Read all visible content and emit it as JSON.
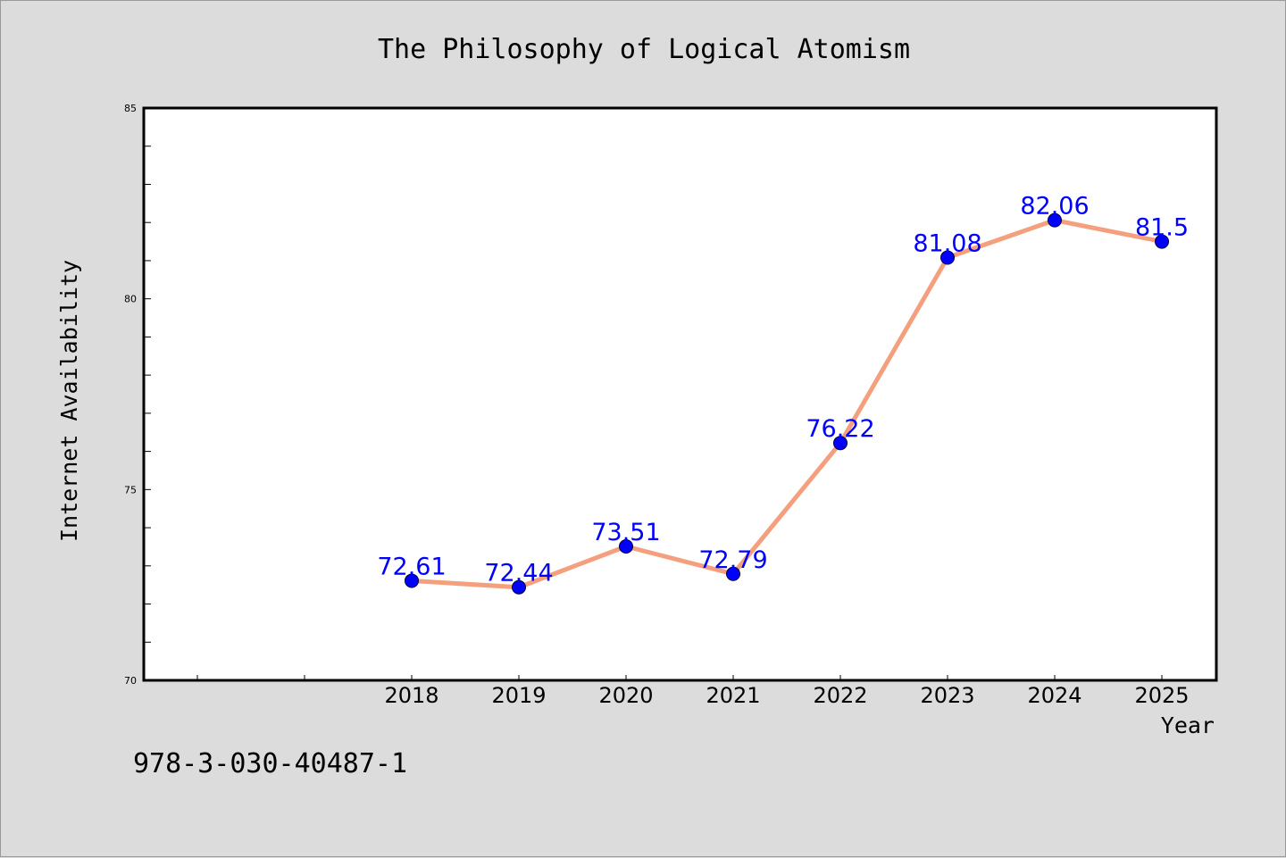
{
  "chart_data": {
    "type": "line",
    "title": "The Philosophy of Logical Atomism",
    "xlabel": "Year",
    "ylabel": "Internet Availability",
    "categories": [
      "2018",
      "2019",
      "2020",
      "2021",
      "2022",
      "2023",
      "2024",
      "2025"
    ],
    "x_ticks": [
      "",
      "",
      "2018",
      "2019",
      "2020",
      "2021",
      "2022",
      "2023",
      "2024",
      "2025"
    ],
    "series": [
      {
        "values": [
          72.61,
          72.44,
          73.51,
          72.79,
          76.22,
          81.08,
          82.06,
          81.5
        ]
      }
    ],
    "data_labels": [
      "72.61",
      "72.44",
      "73.51",
      "72.79",
      "76.22",
      "81.08",
      "82.06",
      "81.5"
    ],
    "ylim": [
      70,
      85
    ],
    "y_ticks": [
      70,
      75,
      80,
      85
    ],
    "y_minor_step": 1,
    "grid": false,
    "legend": "none",
    "line_color": "#f4a07e",
    "marker_color": "#0000ff",
    "label_color": "#0000ff",
    "plot_background": "#ffffff",
    "page_background": "#dcdcdc"
  },
  "footer": {
    "code": "978-3-030-40487-1"
  }
}
